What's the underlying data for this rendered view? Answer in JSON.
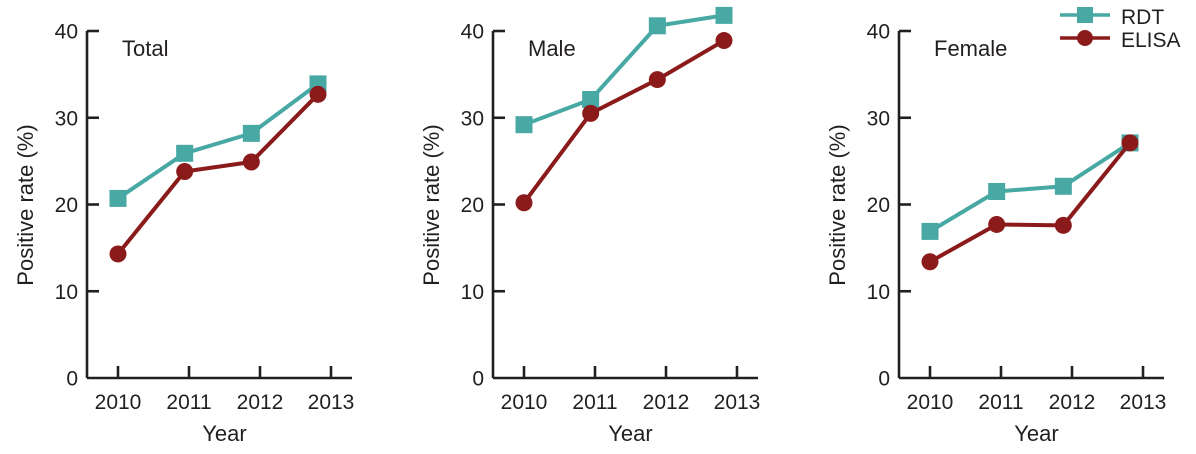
{
  "figure_title": "",
  "colors": {
    "rdt": "#47a8a4",
    "elisa": "#8b1b1b",
    "axis": "#231f20",
    "text": "#231f20",
    "background": "#ffffff"
  },
  "legend": {
    "position": "top-right",
    "items": [
      {
        "label": "RDT",
        "marker": "square",
        "color": "#47a8a4"
      },
      {
        "label": "ELISA",
        "marker": "circle",
        "color": "#8b1b1b"
      }
    ]
  },
  "chart_data": [
    {
      "type": "line",
      "title": "Total",
      "xlabel": "Year",
      "ylabel": "Positive rate (%)",
      "ylim": [
        0,
        40
      ],
      "yticks": [
        0,
        10,
        20,
        30,
        40
      ],
      "x": [
        2010,
        2011,
        2012,
        2013
      ],
      "grid": false,
      "series": [
        {
          "name": "RDT",
          "marker": "square",
          "color": "#47a8a4",
          "values": [
            20.7,
            25.9,
            28.2,
            33.9
          ]
        },
        {
          "name": "ELISA",
          "marker": "circle",
          "color": "#8b1b1b",
          "values": [
            14.3,
            23.8,
            24.9,
            32.7
          ]
        }
      ]
    },
    {
      "type": "line",
      "title": "Male",
      "xlabel": "Year",
      "ylabel": "Positive rate (%)",
      "ylim": [
        0,
        40
      ],
      "yticks": [
        0,
        10,
        20,
        30,
        40
      ],
      "x": [
        2010,
        2011,
        2012,
        2013
      ],
      "grid": false,
      "series": [
        {
          "name": "RDT",
          "marker": "square",
          "color": "#47a8a4",
          "values": [
            29.2,
            32.1,
            40.6,
            41.8
          ]
        },
        {
          "name": "ELISA",
          "marker": "circle",
          "color": "#8b1b1b",
          "values": [
            20.2,
            30.5,
            34.4,
            38.9
          ]
        }
      ]
    },
    {
      "type": "line",
      "title": "Female",
      "xlabel": "Year",
      "ylabel": "Positive rate (%)",
      "ylim": [
        0,
        40
      ],
      "yticks": [
        0,
        10,
        20,
        30,
        40
      ],
      "x": [
        2010,
        2011,
        2012,
        2013
      ],
      "grid": false,
      "series": [
        {
          "name": "RDT",
          "marker": "square",
          "color": "#47a8a4",
          "values": [
            16.9,
            21.5,
            22.1,
            27.1
          ]
        },
        {
          "name": "ELISA",
          "marker": "circle",
          "color": "#8b1b1b",
          "values": [
            13.4,
            17.7,
            17.6,
            27.1
          ]
        }
      ]
    }
  ]
}
